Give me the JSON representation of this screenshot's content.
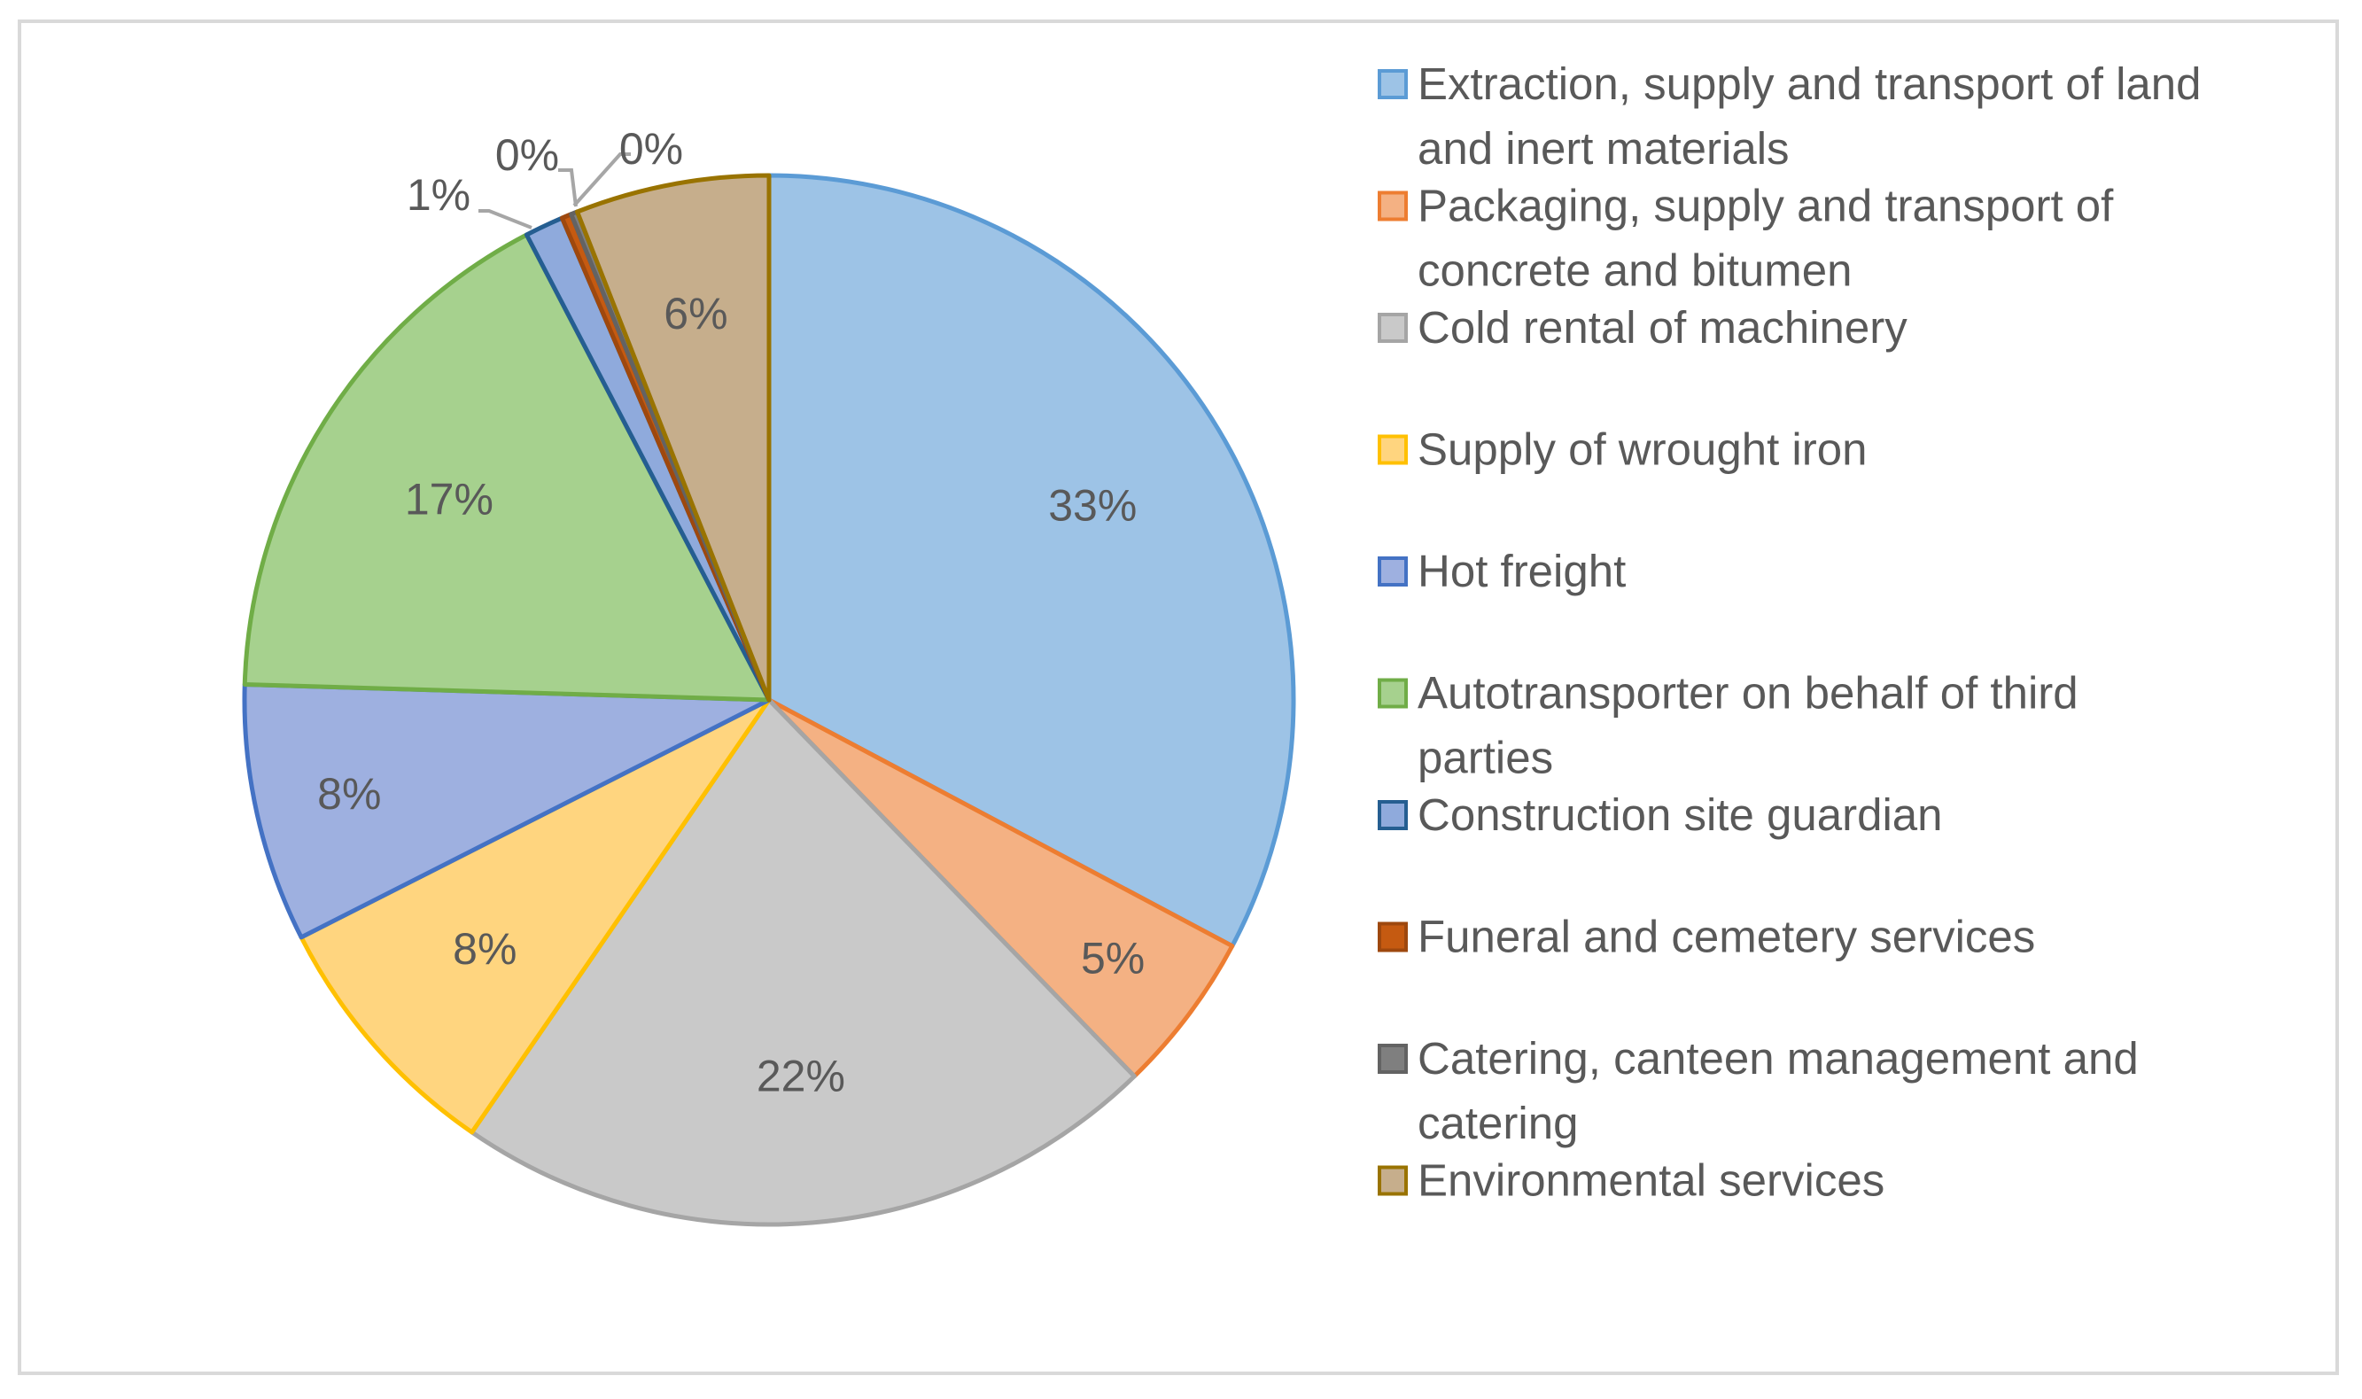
{
  "chart_data": {
    "type": "pie",
    "title": "",
    "legend_position": "right",
    "slices": [
      {
        "name": "Extraction, supply and transport of land and inert materials",
        "legend_lines": [
          "Extraction, supply and transport of land",
          "and inert materials"
        ],
        "value": 33,
        "label": "33%",
        "fill": "#9dc3e6",
        "stroke": "#5b9bd5"
      },
      {
        "name": "Packaging, supply and transport of concrete and bitumen",
        "legend_lines": [
          "Packaging, supply and transport of",
          "concrete and bitumen"
        ],
        "value": 5,
        "label": "5%",
        "fill": "#f4b183",
        "stroke": "#ed7d31"
      },
      {
        "name": "Cold rental of machinery",
        "legend_lines": [
          "Cold rental of machinery"
        ],
        "value": 22,
        "label": "22%",
        "fill": "#c9c9c9",
        "stroke": "#a5a5a5"
      },
      {
        "name": "Supply of wrought iron",
        "legend_lines": [
          "Supply of wrought iron"
        ],
        "value": 8,
        "label": "8%",
        "fill": "#ffd57f",
        "stroke": "#ffc000"
      },
      {
        "name": "Hot freight",
        "legend_lines": [
          "Hot freight"
        ],
        "value": 8,
        "label": "8%",
        "fill": "#9eb0e0",
        "stroke": "#4472c4"
      },
      {
        "name": "Autotransporter on behalf of third parties",
        "legend_lines": [
          "Autotransporter on behalf of third",
          "parties"
        ],
        "value": 17,
        "label": "17%",
        "fill": "#a6d18e",
        "stroke": "#70ad47"
      },
      {
        "name": "Construction site guardian",
        "legend_lines": [
          "Construction site guardian"
        ],
        "value": 1.2,
        "label": "1%",
        "fill": "#8faadc",
        "stroke": "#255e91"
      },
      {
        "name": "Funeral and cemetery services",
        "legend_lines": [
          "Funeral and cemetery services"
        ],
        "value": 0.3,
        "label": "0%",
        "fill": "#c55a11",
        "stroke": "#9e480e"
      },
      {
        "name": "Catering, canteen management and catering",
        "legend_lines": [
          "Catering, canteen management and",
          "catering"
        ],
        "value": 0.2,
        "label": "0%",
        "fill": "#7f7f7f",
        "stroke": "#636363"
      },
      {
        "name": "Environmental services",
        "legend_lines": [
          "Environmental services"
        ],
        "value": 6,
        "label": "6%",
        "fill": "#c6ae8c",
        "stroke": "#997300"
      }
    ]
  }
}
